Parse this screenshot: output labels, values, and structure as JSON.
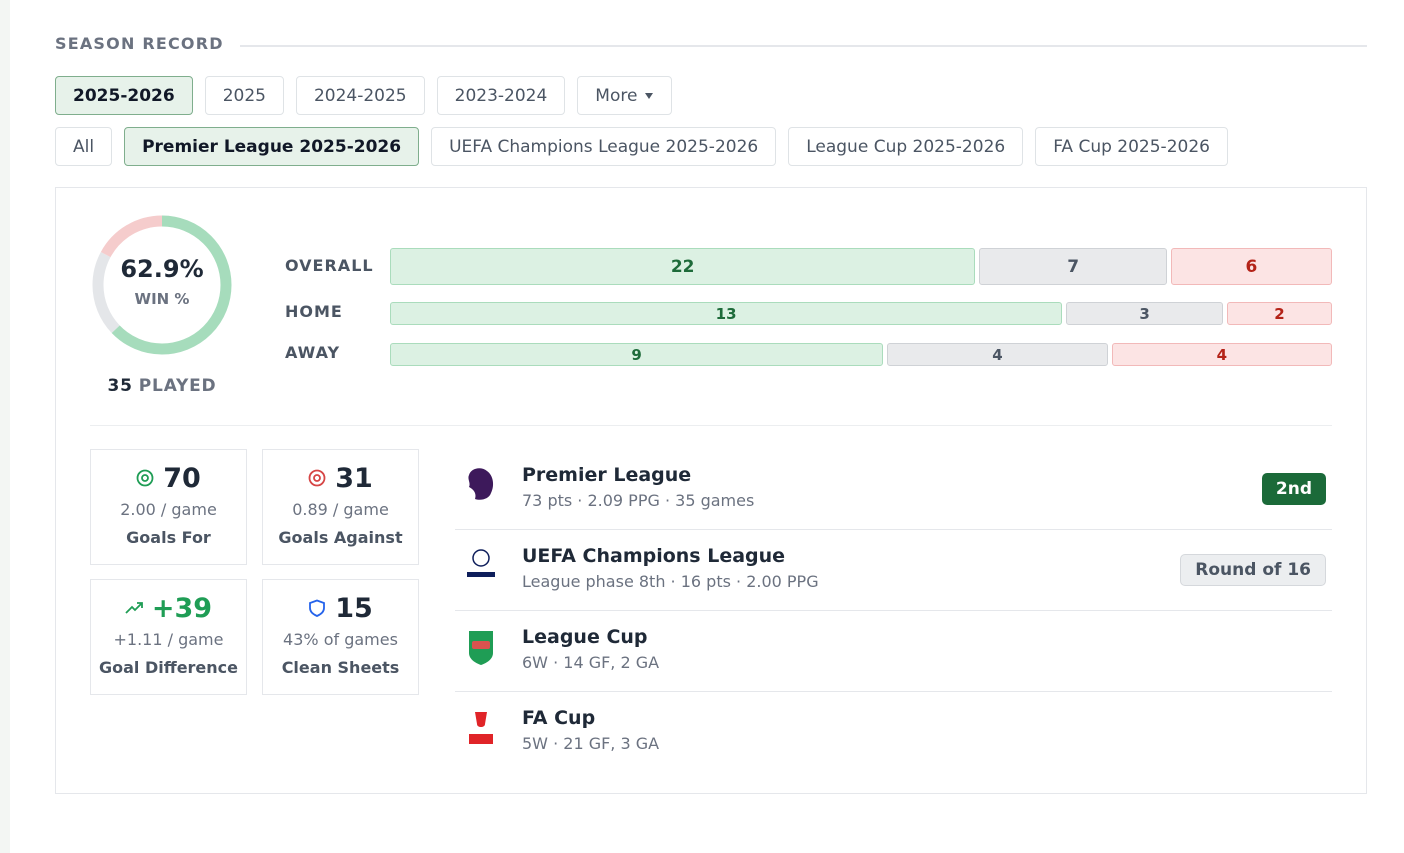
{
  "section_title": "SEASON RECORD",
  "season_tabs": [
    {
      "label": "2025-2026",
      "active": true
    },
    {
      "label": "2025",
      "active": false
    },
    {
      "label": "2024-2025",
      "active": false
    },
    {
      "label": "2023-2024",
      "active": false
    },
    {
      "label": "More",
      "active": false
    }
  ],
  "competition_tabs": [
    {
      "label": "All",
      "active": false
    },
    {
      "label": "Premier League 2025-2026",
      "active": true
    },
    {
      "label": "UEFA Champions League 2025-2026",
      "active": false
    },
    {
      "label": "League Cup 2025-2026",
      "active": false
    },
    {
      "label": "FA Cup 2025-2026",
      "active": false
    }
  ],
  "summary": {
    "win_pct": {
      "value": 62.9,
      "label": "62.9%"
    },
    "win_pct_caption": "WIN %",
    "played": 35,
    "played_label": "PLAYED"
  },
  "record": [
    {
      "label": "OVERALL",
      "wins": 22,
      "draws": 7,
      "losses": 6
    },
    {
      "label": "HOME",
      "wins": 13,
      "draws": 3,
      "losses": 2
    },
    {
      "label": "AWAY",
      "wins": 9,
      "draws": 4,
      "losses": 4
    }
  ],
  "stats": [
    {
      "value": "70",
      "sub": "2.00 / game",
      "label": "Goals For"
    },
    {
      "value": "31",
      "sub": "0.89 / game",
      "label": "Goals Against"
    },
    {
      "value": "+39",
      "sub": "+1.11 / game",
      "label": "Goal Difference"
    },
    {
      "value": "15",
      "sub": "43% of games",
      "label": "Clean Sheets"
    }
  ],
  "competitions": [
    {
      "name": "Premier League",
      "details": "73 pts · 2.09 PPG · 35 games",
      "badge": "2nd"
    },
    {
      "name": "UEFA Champions League",
      "details": "League phase 8th · 16 pts · 2.00 PPG",
      "badge": "Round of 16"
    },
    {
      "name": "League Cup",
      "details": "6W · 14 GF, 2 GA"
    },
    {
      "name": "FA Cup",
      "details": "5W · 21 GF, 3 GA"
    }
  ]
}
